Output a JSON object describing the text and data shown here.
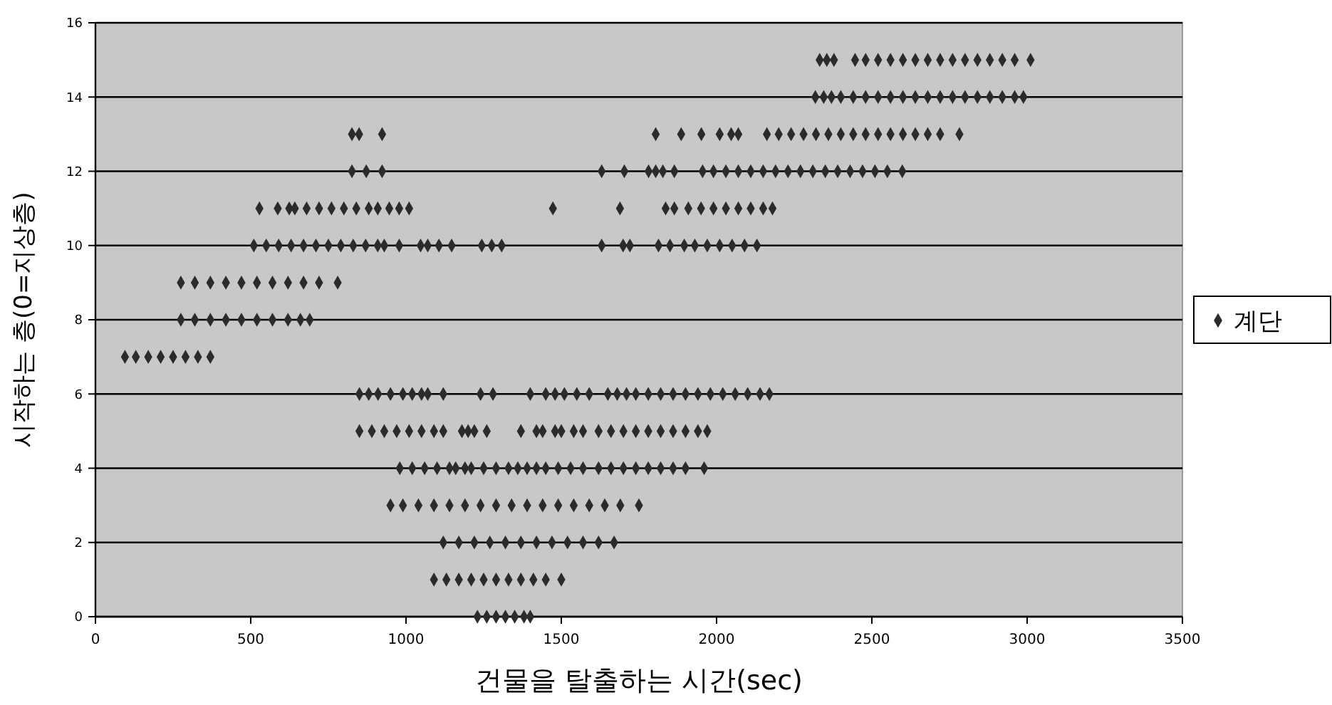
{
  "chart_data": {
    "type": "scatter",
    "xlabel": "건물을 탈출하는 시간(sec)",
    "ylabel": "시작하는 층(0=지상층)",
    "xlim": [
      0,
      3500
    ],
    "xticks": [
      0,
      500,
      1000,
      1500,
      2000,
      2500,
      3000,
      3500
    ],
    "ylim": [
      0,
      16
    ],
    "yticks": [
      0,
      2,
      4,
      6,
      8,
      10,
      12,
      14,
      16
    ],
    "grid": "y",
    "legend": "right",
    "marker": "diamond",
    "series": [
      {
        "name": "계단",
        "color": "#2b2b2b",
        "x": [
          1230,
          1260,
          1290,
          1320,
          1350,
          1380,
          1400,
          1090,
          1130,
          1170,
          1210,
          1250,
          1290,
          1330,
          1370,
          1410,
          1450,
          1500,
          1120,
          1170,
          1220,
          1270,
          1320,
          1370,
          1420,
          1470,
          1520,
          1570,
          1620,
          1670,
          950,
          990,
          1040,
          1090,
          1140,
          1190,
          1240,
          1290,
          1340,
          1390,
          1440,
          1490,
          1540,
          1590,
          1640,
          1690,
          1750,
          980,
          1020,
          1060,
          1100,
          1140,
          1160,
          1190,
          1210,
          1250,
          1290,
          1330,
          1360,
          1390,
          1420,
          1450,
          1490,
          1530,
          1570,
          1620,
          1660,
          1700,
          1740,
          1780,
          1820,
          1860,
          1900,
          1960,
          850,
          890,
          930,
          970,
          1010,
          1050,
          1090,
          1120,
          1180,
          1200,
          1220,
          1260,
          1370,
          1420,
          1440,
          1480,
          1500,
          1540,
          1570,
          1620,
          1660,
          1700,
          1740,
          1780,
          1820,
          1860,
          1900,
          1940,
          1970,
          850,
          880,
          910,
          950,
          990,
          1020,
          1050,
          1070,
          1120,
          1240,
          1280,
          1400,
          1450,
          1480,
          1510,
          1550,
          1590,
          1650,
          1680,
          1710,
          1740,
          1780,
          1820,
          1860,
          1900,
          1940,
          1980,
          2020,
          2060,
          2100,
          2140,
          2170,
          95,
          130,
          170,
          210,
          250,
          290,
          330,
          370,
          275,
          320,
          370,
          420,
          470,
          520,
          570,
          620,
          660,
          690,
          275,
          320,
          370,
          420,
          470,
          520,
          570,
          620,
          670,
          720,
          780,
          510,
          550,
          590,
          630,
          670,
          710,
          750,
          790,
          830,
          870,
          909,
          930,
          978,
          1047,
          1070,
          1106,
          1147,
          1244,
          1276,
          1308,
          1630,
          1699,
          1721,
          1813,
          1850,
          1896,
          1930,
          1970,
          2010,
          2050,
          2090,
          2130,
          528,
          587,
          624,
          642,
          680,
          720,
          760,
          800,
          840,
          880,
          909,
          946,
          978,
          1010,
          1473,
          1689,
          1836,
          1864,
          1909,
          1950,
          1990,
          2030,
          2070,
          2110,
          2150,
          2180,
          826,
          872,
          923,
          1630,
          1703,
          1781,
          1804,
          1827,
          1864,
          1955,
          1990,
          2030,
          2070,
          2110,
          2150,
          2190,
          2230,
          2270,
          2310,
          2350,
          2390,
          2430,
          2470,
          2510,
          2550,
          2598,
          826,
          849,
          923,
          1804,
          1886,
          1951,
          2010,
          2047,
          2070,
          2162,
          2200,
          2240,
          2280,
          2320,
          2360,
          2400,
          2440,
          2480,
          2520,
          2560,
          2600,
          2640,
          2680,
          2720,
          2782,
          2318,
          2345,
          2370,
          2400,
          2440,
          2480,
          2520,
          2560,
          2600,
          2640,
          2680,
          2720,
          2760,
          2800,
          2840,
          2880,
          2920,
          2960,
          2988,
          2332,
          2355,
          2378,
          2446,
          2480,
          2520,
          2560,
          2600,
          2640,
          2680,
          2720,
          2760,
          2800,
          2840,
          2880,
          2920,
          2960,
          3011
        ],
        "values": [
          0,
          0,
          0,
          0,
          0,
          0,
          0,
          1,
          1,
          1,
          1,
          1,
          1,
          1,
          1,
          1,
          1,
          1,
          2,
          2,
          2,
          2,
          2,
          2,
          2,
          2,
          2,
          2,
          2,
          2,
          3,
          3,
          3,
          3,
          3,
          3,
          3,
          3,
          3,
          3,
          3,
          3,
          3,
          3,
          3,
          3,
          3,
          4,
          4,
          4,
          4,
          4,
          4,
          4,
          4,
          4,
          4,
          4,
          4,
          4,
          4,
          4,
          4,
          4,
          4,
          4,
          4,
          4,
          4,
          4,
          4,
          4,
          4,
          4,
          5,
          5,
          5,
          5,
          5,
          5,
          5,
          5,
          5,
          5,
          5,
          5,
          5,
          5,
          5,
          5,
          5,
          5,
          5,
          5,
          5,
          5,
          5,
          5,
          5,
          5,
          5,
          5,
          5,
          6,
          6,
          6,
          6,
          6,
          6,
          6,
          6,
          6,
          6,
          6,
          6,
          6,
          6,
          6,
          6,
          6,
          6,
          6,
          6,
          6,
          6,
          6,
          6,
          6,
          6,
          6,
          6,
          6,
          6,
          6,
          6,
          7,
          7,
          7,
          7,
          7,
          7,
          7,
          7,
          8,
          8,
          8,
          8,
          8,
          8,
          8,
          8,
          8,
          8,
          9,
          9,
          9,
          9,
          9,
          9,
          9,
          9,
          9,
          9,
          9,
          10,
          10,
          10,
          10,
          10,
          10,
          10,
          10,
          10,
          10,
          10,
          10,
          10,
          10,
          10,
          10,
          10,
          10,
          10,
          10,
          10,
          10,
          10,
          10,
          10,
          10,
          10,
          10,
          10,
          10,
          10,
          10,
          11,
          11,
          11,
          11,
          11,
          11,
          11,
          11,
          11,
          11,
          11,
          11,
          11,
          11,
          11,
          11,
          11,
          11,
          11,
          11,
          11,
          11,
          11,
          11,
          11,
          11,
          12,
          12,
          12,
          12,
          12,
          12,
          12,
          12,
          12,
          12,
          12,
          12,
          12,
          12,
          12,
          12,
          12,
          12,
          12,
          12,
          12,
          12,
          12,
          12,
          12,
          12,
          13,
          13,
          13,
          13,
          13,
          13,
          13,
          13,
          13,
          13,
          13,
          13,
          13,
          13,
          13,
          13,
          13,
          13,
          13,
          13,
          13,
          13,
          13,
          13,
          13,
          14,
          14,
          14,
          14,
          14,
          14,
          14,
          14,
          14,
          14,
          14,
          14,
          14,
          14,
          14,
          14,
          14,
          14,
          14,
          15,
          15,
          15,
          15,
          15,
          15,
          15,
          15,
          15,
          15,
          15,
          15,
          15,
          15,
          15,
          15,
          15,
          15
        ]
      }
    ]
  }
}
